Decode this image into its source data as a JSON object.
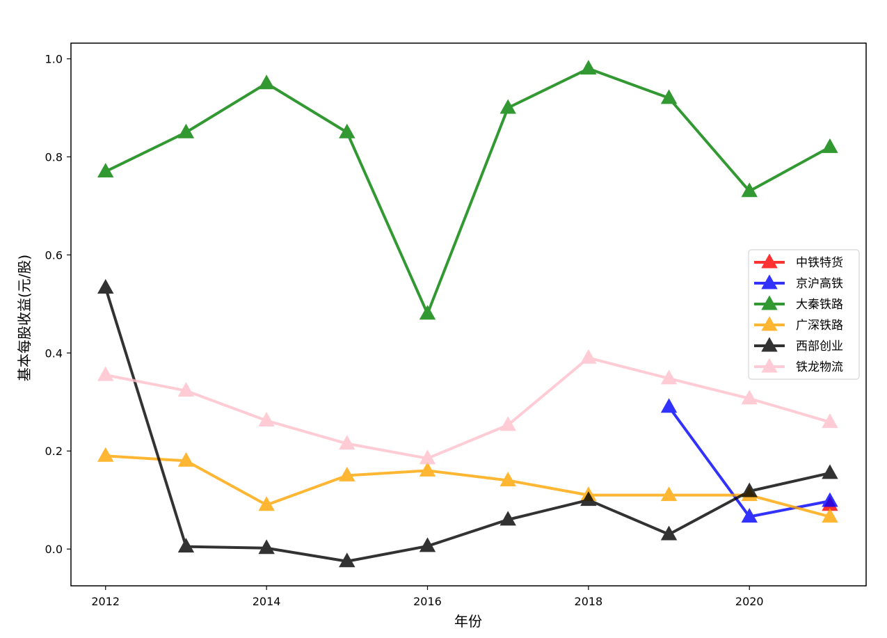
{
  "chart_data": {
    "type": "line",
    "xlabel": "年份",
    "ylabel": "基本每股收益(元/股)",
    "xlim": [
      2011.57,
      2021.45
    ],
    "ylim": [
      -0.075,
      1.032
    ],
    "xticks": [
      2012,
      2014,
      2016,
      2018,
      2020
    ],
    "yticks": [
      0.0,
      0.2,
      0.4,
      0.6,
      0.8,
      1.0
    ],
    "grid": false,
    "legend_position": "center-right",
    "marker": "triangle",
    "series": [
      {
        "name": "中铁特货",
        "color": "#ff0000",
        "x": [
          2021
        ],
        "y": [
          0.09
        ]
      },
      {
        "name": "京沪高铁",
        "color": "#0000ff",
        "x": [
          2019,
          2020,
          2021
        ],
        "y": [
          0.29,
          0.066,
          0.098
        ]
      },
      {
        "name": "大秦铁路",
        "color": "#008000",
        "x": [
          2012,
          2013,
          2014,
          2015,
          2016,
          2017,
          2018,
          2019,
          2020,
          2021
        ],
        "y": [
          0.77,
          0.85,
          0.95,
          0.85,
          0.48,
          0.9,
          0.98,
          0.92,
          0.73,
          0.82
        ]
      },
      {
        "name": "广深铁路",
        "color": "#ffa500",
        "x": [
          2012,
          2013,
          2014,
          2015,
          2016,
          2017,
          2018,
          2019,
          2020,
          2021
        ],
        "y": [
          0.19,
          0.18,
          0.09,
          0.15,
          0.16,
          0.14,
          0.11,
          0.11,
          0.11,
          0.066
        ]
      },
      {
        "name": "西部创业",
        "color": "#000000",
        "x": [
          2012,
          2013,
          2014,
          2015,
          2016,
          2017,
          2018,
          2019,
          2020,
          2021
        ],
        "y": [
          0.533,
          0.005,
          0.002,
          -0.025,
          0.006,
          0.06,
          0.1,
          0.03,
          0.118,
          0.155
        ]
      },
      {
        "name": "铁龙物流",
        "color": "#ffc0cb",
        "x": [
          2012,
          2013,
          2014,
          2015,
          2016,
          2017,
          2018,
          2019,
          2020,
          2021
        ],
        "y": [
          0.355,
          0.323,
          0.262,
          0.215,
          0.185,
          0.253,
          0.39,
          0.348,
          0.307,
          0.259
        ]
      }
    ]
  }
}
